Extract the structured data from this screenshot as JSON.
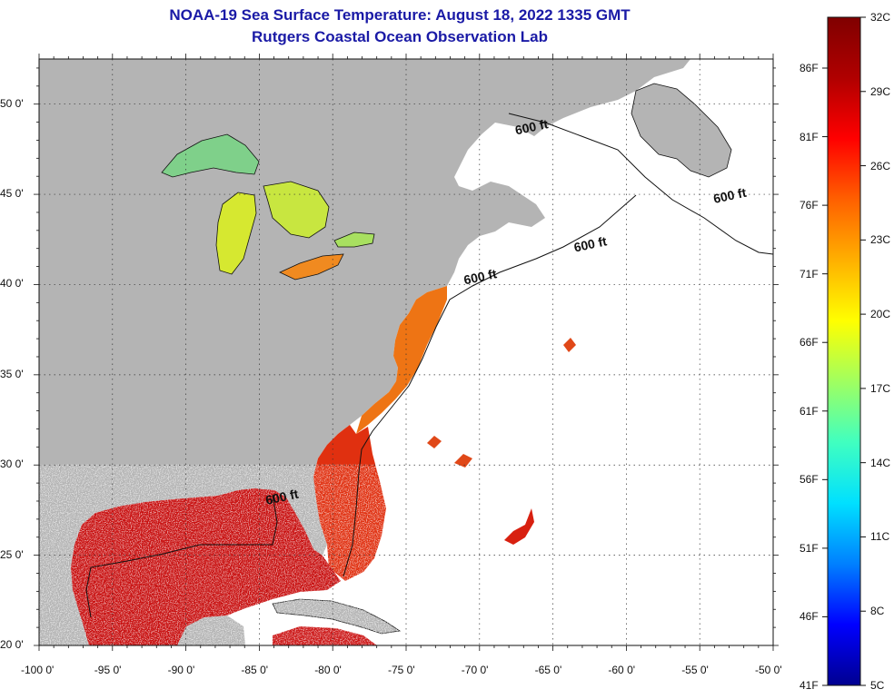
{
  "header": {
    "title": "NOAA-19 Sea Surface Temperature:  August 18, 2022 1335 GMT",
    "subtitle": "Rutgers Coastal Ocean Observation Lab"
  },
  "map": {
    "lon_range": [
      -100,
      -50
    ],
    "lat_range": [
      20,
      52.5
    ],
    "lon_ticks": [
      "-100 0'",
      "-95 0'",
      "-90 0'",
      "-85 0'",
      "-80 0'",
      "-75 0'",
      "-70 0'",
      "-65 0'",
      "-60 0'",
      "-55 0'",
      "-50 0'"
    ],
    "lat_ticks": [
      "50 0'",
      "45 0'",
      "40 0'",
      "35 0'",
      "30 0'",
      "25 0'",
      "20 0'"
    ],
    "lat_tick_values": [
      50,
      45,
      40,
      35,
      30,
      25,
      20
    ],
    "land_color": "#b4b4b4",
    "ocean_color": "#ffffff",
    "grid": true,
    "isobath_labels": [
      {
        "text": "600 ft",
        "lon": -67.5,
        "lat": 48.3
      },
      {
        "text": "600 ft",
        "lon": -54.0,
        "lat": 44.5
      },
      {
        "text": "600 ft",
        "lon": -63.5,
        "lat": 41.8
      },
      {
        "text": "600 ft",
        "lon": -71.0,
        "lat": 40.0
      },
      {
        "text": "600 ft",
        "lon": -84.5,
        "lat": 27.8
      }
    ]
  },
  "colorbar": {
    "celsius": [
      "32C",
      "29C",
      "26C",
      "23C",
      "20C",
      "17C",
      "14C",
      "11C",
      "8C",
      "5C"
    ],
    "fahrenheit": [
      "86F",
      "81F",
      "76F",
      "71F",
      "66F",
      "61F",
      "56F",
      "51F",
      "46F",
      "41F"
    ],
    "colors": [
      "#000090",
      "#0000ff",
      "#0080ff",
      "#00e0ff",
      "#40ffc0",
      "#a0ff60",
      "#ffff00",
      "#ffb000",
      "#ff6000",
      "#ff0000",
      "#b00000",
      "#800000"
    ]
  }
}
